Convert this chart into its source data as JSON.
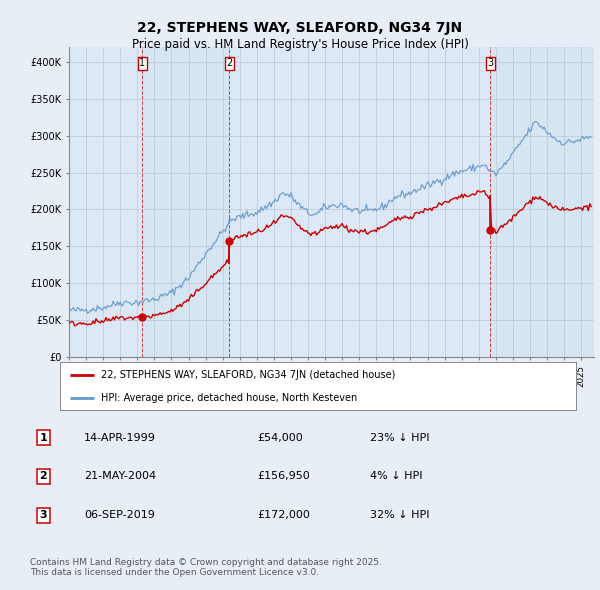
{
  "title": "22, STEPHENS WAY, SLEAFORD, NG34 7JN",
  "subtitle": "Price paid vs. HM Land Registry's House Price Index (HPI)",
  "title_fontsize": 10,
  "subtitle_fontsize": 8.5,
  "background_color": "#e8eef5",
  "plot_bg_color": "#dce8f5",
  "hpi_color": "#6699cc",
  "price_color": "#cc0000",
  "sale_line_color": "#cc0000",
  "ylim": [
    0,
    420000
  ],
  "yticks": [
    0,
    50000,
    100000,
    150000,
    200000,
    250000,
    300000,
    350000,
    400000
  ],
  "ytick_labels": [
    "£0",
    "£50K",
    "£100K",
    "£150K",
    "£200K",
    "£250K",
    "£300K",
    "£350K",
    "£400K"
  ],
  "xlim_start": 1995.0,
  "xlim_end": 2025.75,
  "sales": [
    {
      "num": 1,
      "date": "14-APR-1999",
      "year": 1999.29,
      "price": 54000,
      "pct": "23% ↓ HPI"
    },
    {
      "num": 2,
      "date": "21-MAY-2004",
      "year": 2004.38,
      "price": 156950,
      "pct": "4% ↓ HPI"
    },
    {
      "num": 3,
      "date": "06-SEP-2019",
      "year": 2019.68,
      "price": 172000,
      "pct": "32% ↓ HPI"
    }
  ],
  "legend_label_price": "22, STEPHENS WAY, SLEAFORD, NG34 7JN (detached house)",
  "legend_label_hpi": "HPI: Average price, detached house, North Kesteven",
  "footer": "Contains HM Land Registry data © Crown copyright and database right 2025.\nThis data is licensed under the Open Government Licence v3.0."
}
